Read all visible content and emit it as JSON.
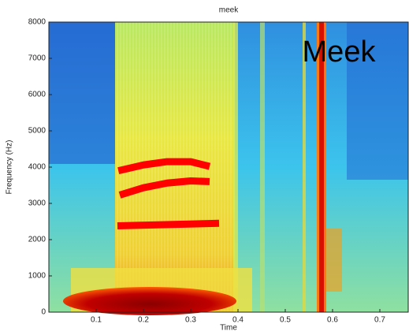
{
  "chart_data": {
    "type": "line",
    "title": "meek",
    "x_label": "Time",
    "y_label": "Frequency (Hz)",
    "annotation": "Meek",
    "xlim": [
      0,
      0.76
    ],
    "ylim": [
      0,
      8000
    ],
    "xticks": [
      0.1,
      0.2,
      0.3,
      0.4,
      0.5,
      0.6,
      0.7
    ],
    "yticks": [
      0,
      1000,
      2000,
      3000,
      4000,
      5000,
      6000,
      7000,
      8000
    ],
    "series": [
      {
        "color": "#ff0000",
        "x": [
          0.147,
          0.2,
          0.25,
          0.3,
          0.34
        ],
        "values": [
          3900,
          4060,
          4150,
          4150,
          4020
        ]
      },
      {
        "color": "#ff0000",
        "x": [
          0.15,
          0.2,
          0.25,
          0.3,
          0.34
        ],
        "values": [
          3230,
          3430,
          3560,
          3620,
          3600
        ]
      },
      {
        "color": "#ff0000",
        "x": [
          0.145,
          0.36
        ],
        "values": [
          2380,
          2450
        ]
      }
    ]
  }
}
